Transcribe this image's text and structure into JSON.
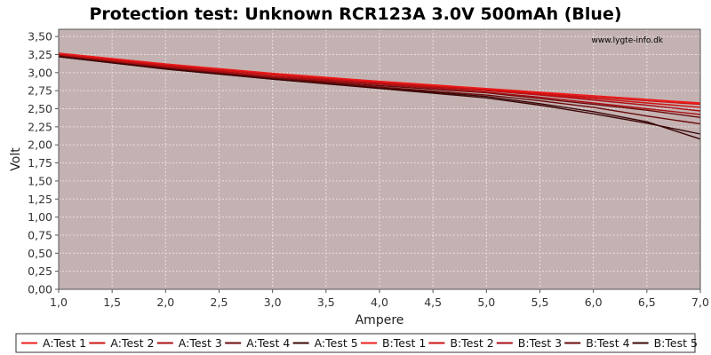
{
  "chart_data": {
    "type": "line",
    "title": "Protection test: Unknown RCR123A 3.0V 500mAh (Blue)",
    "xlabel": "Ampere",
    "ylabel": "Volt",
    "watermark": "www.lygte-info.dk",
    "xlim": [
      1.0,
      7.0
    ],
    "ylim": [
      0.0,
      3.6
    ],
    "grid": true,
    "legend_position": "bottom",
    "plot_background": "#c4b2b2",
    "x_ticks": [
      1.0,
      1.5,
      2.0,
      2.5,
      3.0,
      3.5,
      4.0,
      4.5,
      5.0,
      5.5,
      6.0,
      6.5,
      7.0
    ],
    "x_tick_labels": [
      "1,0",
      "1,5",
      "2,0",
      "2,5",
      "3,0",
      "3,5",
      "4,0",
      "4,5",
      "5,0",
      "5,5",
      "6,0",
      "6,5",
      "7,0"
    ],
    "y_ticks": [
      0.0,
      0.25,
      0.5,
      0.75,
      1.0,
      1.25,
      1.5,
      1.75,
      2.0,
      2.25,
      2.5,
      2.75,
      3.0,
      3.25,
      3.5
    ],
    "y_tick_labels": [
      "0,00",
      "0,25",
      "0,50",
      "0,75",
      "1,00",
      "1,25",
      "1,50",
      "1,75",
      "2,00",
      "2,25",
      "2,50",
      "2,75",
      "3,00",
      "3,25",
      "3,50"
    ],
    "x": [
      1.0,
      2.0,
      3.0,
      4.0,
      5.0,
      5.5,
      6.0,
      6.5,
      7.0
    ],
    "series": [
      {
        "name": "A:Test 1",
        "color": "#ee1c1c",
        "values": [
          3.27,
          3.12,
          2.98,
          2.87,
          2.77,
          2.72,
          2.68,
          2.63,
          2.58
        ]
      },
      {
        "name": "A:Test 2",
        "color": "#cc1111",
        "values": [
          3.26,
          3.11,
          2.97,
          2.86,
          2.76,
          2.71,
          2.66,
          2.61,
          2.56
        ]
      },
      {
        "name": "A:Test 3",
        "color": "#a80f14",
        "values": [
          3.24,
          3.09,
          2.95,
          2.85,
          2.75,
          2.69,
          2.62,
          2.55,
          2.47
        ]
      },
      {
        "name": "A:Test 4",
        "color": "#6a0a0a",
        "values": [
          3.23,
          3.07,
          2.93,
          2.82,
          2.72,
          2.64,
          2.56,
          2.48,
          2.38
        ]
      },
      {
        "name": "A:Test 5",
        "color": "#3a0606",
        "values": [
          3.22,
          3.05,
          2.91,
          2.79,
          2.67,
          2.57,
          2.46,
          2.32,
          2.08
        ]
      },
      {
        "name": "B:Test 1",
        "color": "#ee1c1c",
        "values": [
          3.27,
          3.12,
          2.99,
          2.88,
          2.78,
          2.73,
          2.68,
          2.63,
          2.57
        ]
      },
      {
        "name": "B:Test 2",
        "color": "#cc1111",
        "values": [
          3.25,
          3.1,
          2.97,
          2.86,
          2.76,
          2.7,
          2.64,
          2.58,
          2.52
        ]
      },
      {
        "name": "B:Test 3",
        "color": "#a80f14",
        "values": [
          3.24,
          3.08,
          2.94,
          2.84,
          2.73,
          2.66,
          2.58,
          2.5,
          2.42
        ]
      },
      {
        "name": "B:Test 4",
        "color": "#6a0a0a",
        "values": [
          3.23,
          3.06,
          2.92,
          2.8,
          2.69,
          2.61,
          2.52,
          2.4,
          2.29
        ]
      },
      {
        "name": "B:Test 5",
        "color": "#3a0606",
        "values": [
          3.22,
          3.05,
          2.91,
          2.78,
          2.65,
          2.55,
          2.43,
          2.3,
          2.15
        ]
      }
    ]
  }
}
